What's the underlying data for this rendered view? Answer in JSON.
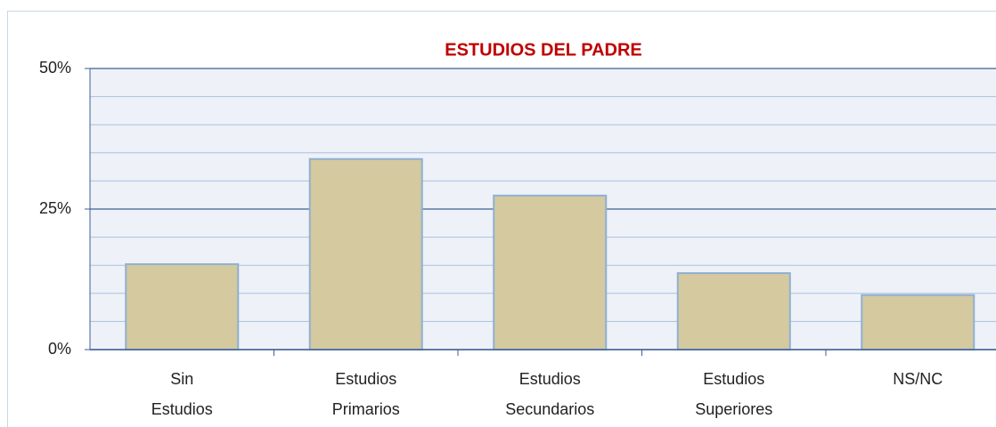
{
  "chart_data": {
    "type": "bar",
    "title": "ESTUDIOS DEL PADRE",
    "categories": [
      "Sin Estudios",
      "Estudios Primarios",
      "Estudios Secundarios",
      "Estudios Superiores",
      "NS/NC"
    ],
    "values": [
      15.2,
      33.9,
      27.4,
      13.6,
      9.7
    ],
    "color": "#d4c99f",
    "ylim": [
      0,
      50
    ],
    "yticks": [
      {
        "value": 0,
        "label": "0%"
      },
      {
        "value": 25,
        "label": "25%"
      },
      {
        "value": 50,
        "label": "50%"
      }
    ],
    "yminorticks": [
      5,
      10,
      15,
      20,
      30,
      35,
      40,
      45
    ],
    "grid": true
  }
}
